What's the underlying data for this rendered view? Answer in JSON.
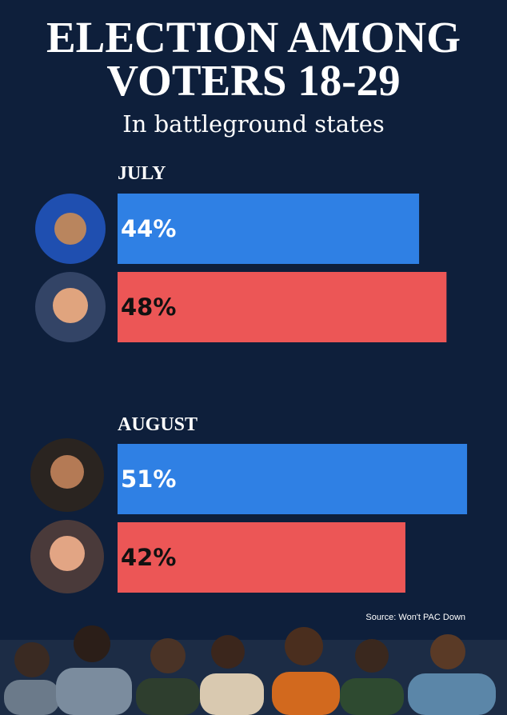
{
  "chart_data": {
    "type": "bar",
    "orientation": "horizontal",
    "title": "ELECTION AMONG VOTERS 18-29",
    "subtitle": "In battleground states",
    "categories": [
      "JULY",
      "AUGUST"
    ],
    "series": [
      {
        "color": "#2f80e4",
        "values": [
          44,
          51
        ],
        "value_labels": [
          "44%",
          "51%"
        ],
        "label_color": "#ffffff"
      },
      {
        "color": "#ec5656",
        "values": [
          48,
          42
        ],
        "value_labels": [
          "48%",
          "42%"
        ],
        "label_color": "#111111"
      }
    ],
    "source": "Source: Won't PAC Down"
  }
}
